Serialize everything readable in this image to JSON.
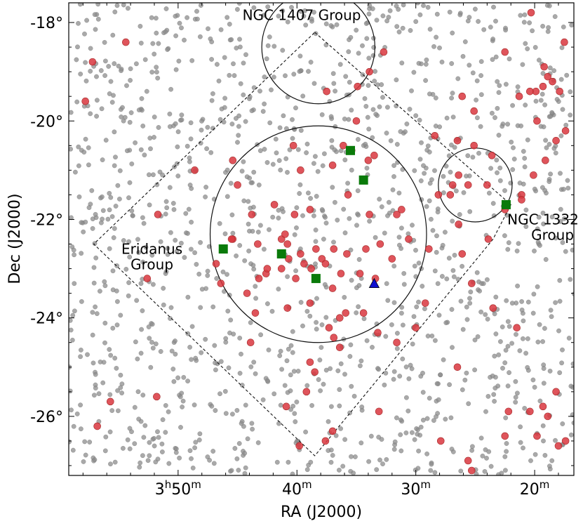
{
  "chart_data": {
    "type": "scatter",
    "title": "",
    "xlabel": "RA (J2000)",
    "ylabel": "Dec (J2000)",
    "x_unit": "minutes of RA (3h offset)",
    "xlim": [
      59.2,
      16.7
    ],
    "ylim": [
      -27.2,
      -17.6
    ],
    "x_ticks": [
      {
        "value": 50,
        "label_main": "3",
        "label_sup_h": "h",
        "label_num": "50",
        "label_sup_m": "m"
      },
      {
        "value": 40,
        "label": "40",
        "label_sup": "m"
      },
      {
        "value": 30,
        "label": "30",
        "label_sup": "m"
      },
      {
        "value": 20,
        "label": "20",
        "label_sup": "m"
      }
    ],
    "y_ticks": [
      {
        "value": -18,
        "label": "-18°"
      },
      {
        "value": -20,
        "label": "-20°"
      },
      {
        "value": -22,
        "label": "-22°"
      },
      {
        "value": -24,
        "label": "-24°"
      },
      {
        "value": -26,
        "label": "-26°"
      }
    ],
    "background_count": 1400,
    "colors": {
      "background": "#8c8c8c",
      "galaxies": "#d9363e",
      "groups": "#0a7a0a",
      "triangle": "#1010d0"
    },
    "galaxies": [
      [
        57.2,
        -18.8
      ],
      [
        54.4,
        -18.4
      ],
      [
        57.8,
        -19.6
      ],
      [
        37.5,
        -19.4
      ],
      [
        34.9,
        -19.3
      ],
      [
        33.9,
        -19.0
      ],
      [
        32.7,
        -18.6
      ],
      [
        35.0,
        -20.0
      ],
      [
        35.4,
        -20.6
      ],
      [
        33.5,
        -20.7
      ],
      [
        34.0,
        -20.8
      ],
      [
        37.0,
        -20.9
      ],
      [
        39.7,
        -21.0
      ],
      [
        36.1,
        -20.5
      ],
      [
        45.0,
        -21.3
      ],
      [
        48.6,
        -21.0
      ],
      [
        51.7,
        -21.9
      ],
      [
        41.9,
        -21.7
      ],
      [
        40.2,
        -21.9
      ],
      [
        38.9,
        -21.8
      ],
      [
        35.7,
        -21.5
      ],
      [
        33.9,
        -21.9
      ],
      [
        31.2,
        -21.8
      ],
      [
        31.6,
        -21.9
      ],
      [
        43.8,
        -21.9
      ],
      [
        45.4,
        -22.4
      ],
      [
        43.3,
        -22.5
      ],
      [
        41.3,
        -22.4
      ],
      [
        41.0,
        -22.3
      ],
      [
        40.8,
        -22.5
      ],
      [
        39.7,
        -22.7
      ],
      [
        38.4,
        -22.6
      ],
      [
        37.9,
        -22.8
      ],
      [
        36.9,
        -22.6
      ],
      [
        35.8,
        -22.7
      ],
      [
        34.2,
        -22.6
      ],
      [
        33.0,
        -22.5
      ],
      [
        32.0,
        -22.8
      ],
      [
        30.6,
        -22.4
      ],
      [
        28.9,
        -22.6
      ],
      [
        40.7,
        -22.8
      ],
      [
        39.4,
        -22.9
      ],
      [
        38.8,
        -23.0
      ],
      [
        37.6,
        -22.9
      ],
      [
        36.3,
        -23.1
      ],
      [
        34.7,
        -23.1
      ],
      [
        33.4,
        -23.2
      ],
      [
        42.6,
        -23.1
      ],
      [
        43.2,
        -23.2
      ],
      [
        42.5,
        -23.0
      ],
      [
        44.2,
        -23.5
      ],
      [
        40.1,
        -23.2
      ],
      [
        38.9,
        -23.7
      ],
      [
        37.0,
        -23.4
      ],
      [
        35.9,
        -23.9
      ],
      [
        34.4,
        -23.9
      ],
      [
        36.4,
        -24.0
      ],
      [
        37.3,
        -24.2
      ],
      [
        40.8,
        -23.8
      ],
      [
        43.5,
        -23.9
      ],
      [
        43.9,
        -24.5
      ],
      [
        38.9,
        -24.9
      ],
      [
        36.4,
        -24.6
      ],
      [
        33.2,
        -24.3
      ],
      [
        31.6,
        -24.5
      ],
      [
        30.0,
        -24.2
      ],
      [
        29.2,
        -23.7
      ],
      [
        36.9,
        -24.4
      ],
      [
        38.5,
        -25.1
      ],
      [
        39.2,
        -25.5
      ],
      [
        40.9,
        -25.8
      ],
      [
        37.0,
        -26.3
      ],
      [
        37.6,
        -26.5
      ],
      [
        39.8,
        -26.6
      ],
      [
        33.1,
        -25.9
      ],
      [
        27.9,
        -26.5
      ],
      [
        26.5,
        -25.0
      ],
      [
        25.6,
        -26.9
      ],
      [
        25.3,
        -27.1
      ],
      [
        22.5,
        -26.4
      ],
      [
        22.2,
        -25.9
      ],
      [
        20.4,
        -25.9
      ],
      [
        19.3,
        -25.8
      ],
      [
        18.9,
        -26.0
      ],
      [
        18.2,
        -25.5
      ],
      [
        19.8,
        -26.4
      ],
      [
        18.0,
        -26.6
      ],
      [
        17.4,
        -26.5
      ],
      [
        22.5,
        -18.6
      ],
      [
        20.3,
        -17.8
      ],
      [
        19.2,
        -18.9
      ],
      [
        17.5,
        -18.4
      ],
      [
        18.9,
        -19.1
      ],
      [
        19.3,
        -19.3
      ],
      [
        18.5,
        -19.2
      ],
      [
        17.9,
        -19.4
      ],
      [
        19.9,
        -19.4
      ],
      [
        20.4,
        -19.4
      ],
      [
        21.3,
        -19.5
      ],
      [
        25.1,
        -19.8
      ],
      [
        26.1,
        -19.5
      ],
      [
        28.4,
        -20.3
      ],
      [
        26.5,
        -20.4
      ],
      [
        25.1,
        -20.5
      ],
      [
        23.6,
        -20.7
      ],
      [
        19.8,
        -20.0
      ],
      [
        18.2,
        -20.4
      ],
      [
        17.4,
        -20.2
      ],
      [
        19.1,
        -20.8
      ],
      [
        20.1,
        -21.1
      ],
      [
        21.1,
        -21.5
      ],
      [
        24.0,
        -21.3
      ],
      [
        25.6,
        -21.3
      ],
      [
        26.4,
        -21.1
      ],
      [
        27.1,
        -21.5
      ],
      [
        26.9,
        -21.3
      ],
      [
        28.1,
        -21.5
      ],
      [
        26.4,
        -22.1
      ],
      [
        21.1,
        -21.6
      ],
      [
        22.5,
        -21.8
      ],
      [
        26.1,
        -22.7
      ],
      [
        23.9,
        -22.4
      ],
      [
        25.3,
        -23.3
      ],
      [
        23.5,
        -23.8
      ],
      [
        21.5,
        -24.2
      ],
      [
        46.4,
        -23.3
      ],
      [
        45.5,
        -22.4
      ],
      [
        52.6,
        -23.2
      ],
      [
        55.7,
        -25.7
      ],
      [
        56.8,
        -26.2
      ],
      [
        51.8,
        -25.6
      ],
      [
        45.4,
        -20.8
      ],
      [
        40.3,
        -20.5
      ],
      [
        46.8,
        -22.9
      ],
      [
        41.3,
        -23.0
      ]
    ],
    "groups": [
      [
        35.5,
        -20.6
      ],
      [
        34.4,
        -21.2
      ],
      [
        46.2,
        -22.6
      ],
      [
        41.3,
        -22.7
      ],
      [
        38.4,
        -23.2
      ],
      [
        22.4,
        -21.7
      ]
    ],
    "triangle": [
      [
        33.5,
        -23.3
      ]
    ],
    "circles": [
      {
        "name": "NGC 1407 Group",
        "cx": 38.2,
        "cy": -18.5,
        "r": 1.15
      },
      {
        "name": "Eridanus Group",
        "cx": 38.2,
        "cy": -22.3,
        "r": 2.2
      },
      {
        "name": "NGC 1332 Group",
        "cx": 25.0,
        "cy": -21.3,
        "r": 0.75
      }
    ],
    "diamond": [
      [
        38.5,
        -18.2
      ],
      [
        22.0,
        -21.7
      ],
      [
        23.5,
        -22.4
      ],
      [
        38.5,
        -26.8
      ],
      [
        57.1,
        -22.5
      ]
    ],
    "annotations": [
      {
        "id": "ngc1407",
        "lines": [
          "NGC 1407 Group"
        ],
        "x": 39.6,
        "y": -17.95,
        "anchor": "middle"
      },
      {
        "id": "eridanus",
        "lines": [
          "Eridanus",
          "Group"
        ],
        "x": 52.2,
        "y": -22.7,
        "anchor": "middle"
      },
      {
        "id": "ngc1332",
        "lines": [
          "NGC 1332",
          "Group"
        ],
        "x": 22.3,
        "y": -22.1,
        "anchor": "start"
      }
    ]
  }
}
